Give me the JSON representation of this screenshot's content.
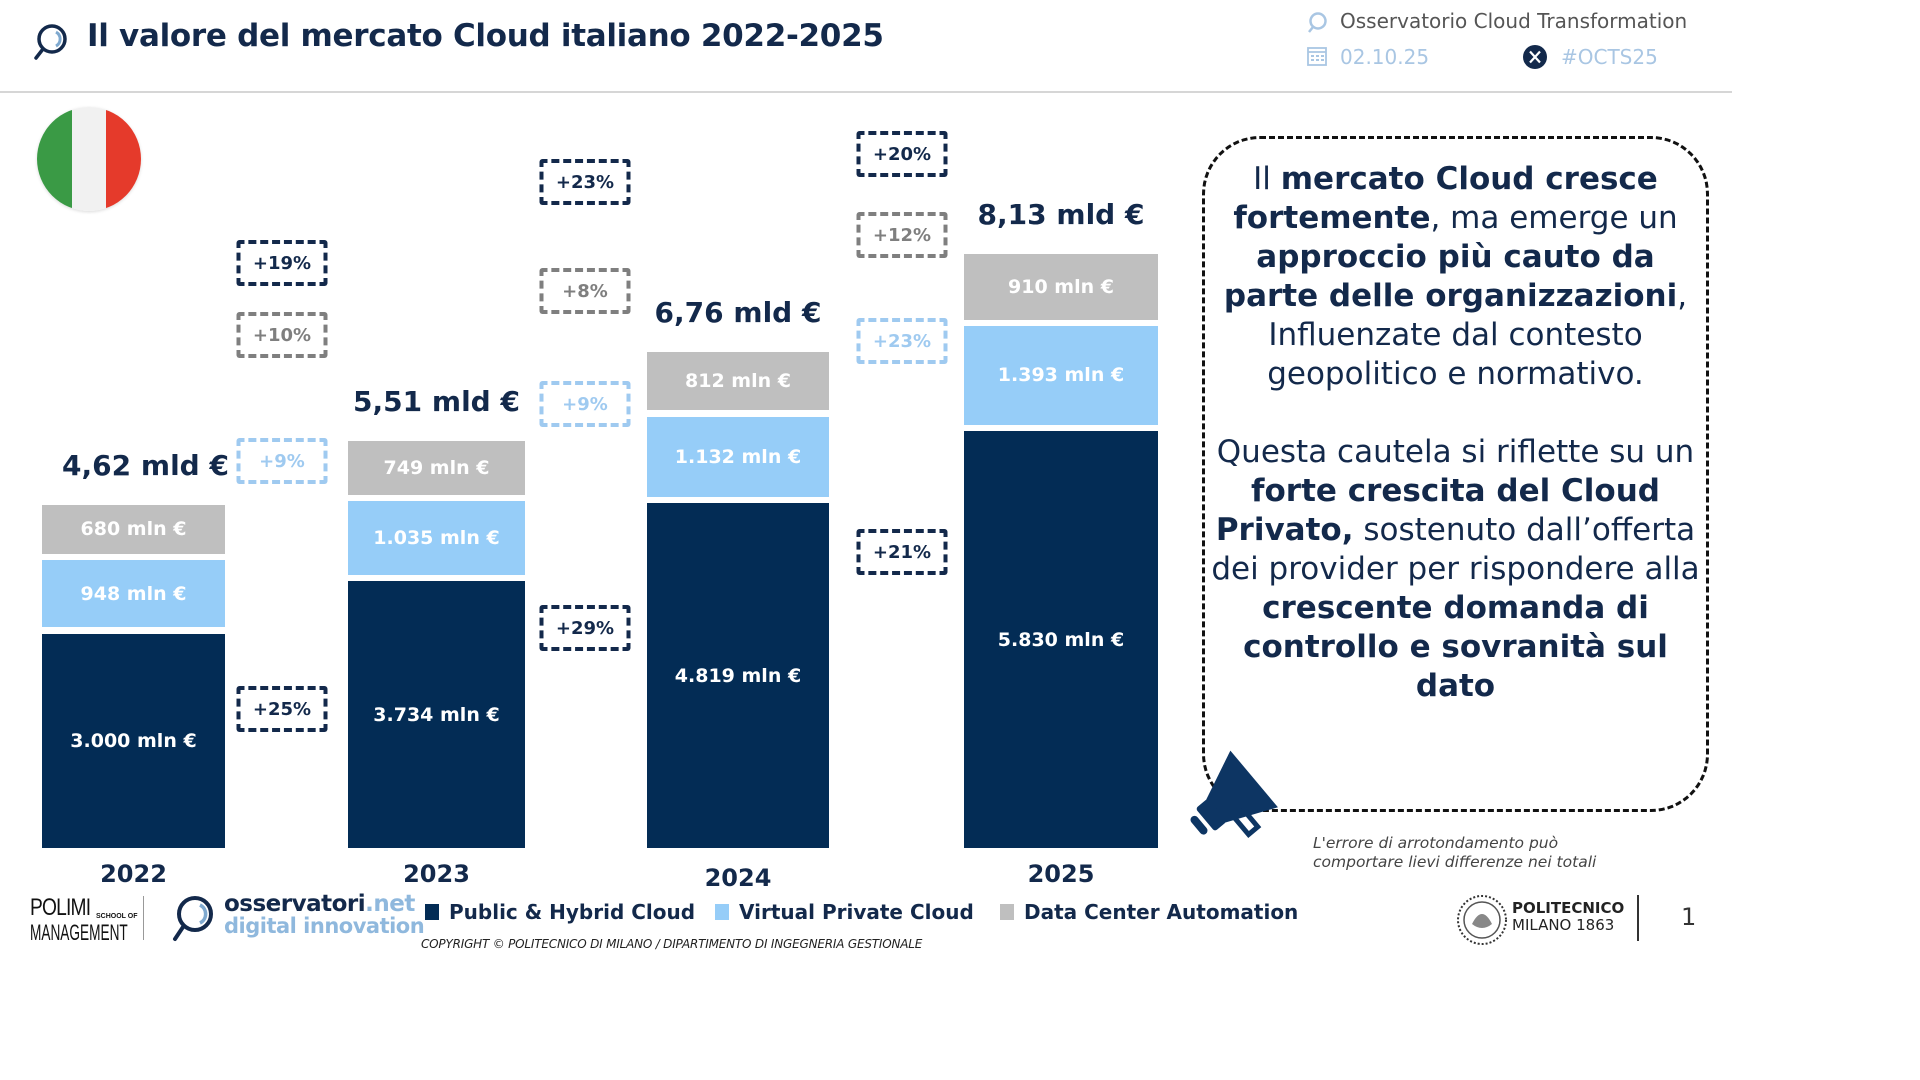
{
  "header": {
    "title": "Il valore del mercato Cloud italiano 2022-2025",
    "observatory": "Osservatorio Cloud Transformation",
    "date": "02.10.25",
    "hashtag": "#OCTS25"
  },
  "colors": {
    "public_hybrid": "#032c55",
    "virtual_private": "#96cdf8",
    "dc_automation": "#bfbfbf",
    "text_dark": "#13294b"
  },
  "chart_data": {
    "type": "bar",
    "stacked": true,
    "title": "Il valore del mercato Cloud italiano 2022-2025",
    "categories": [
      "2022",
      "2023",
      "2024",
      "2025"
    ],
    "unit": "mln €",
    "series": [
      {
        "name": "Public & Hybrid Cloud",
        "values": [
          3000,
          3734,
          4819,
          5830
        ],
        "labels": [
          "3.000 mln €",
          "3.734 mln €",
          "4.819 mln €",
          "5.830 mln €"
        ]
      },
      {
        "name": "Virtual Private Cloud",
        "values": [
          948,
          1035,
          1132,
          1393
        ],
        "labels": [
          "948 mln €",
          "1.035 mln €",
          "1.132 mln €",
          "1.393 mln €"
        ]
      },
      {
        "name": "Data Center Automation",
        "values": [
          680,
          749,
          812,
          910
        ],
        "labels": [
          "680 mln €",
          "749 mln €",
          "812 mln €",
          "910 mln €"
        ]
      }
    ],
    "totals": [
      4.62,
      5.51,
      6.76,
      8.13
    ],
    "total_labels": [
      "4,62 mld €",
      "5,51 mld €",
      "6,76 mld €",
      "8,13 mld €"
    ],
    "growth": [
      {
        "period": "2022-2023",
        "total": "+19%",
        "dc_automation": "+10%",
        "virtual_private": "+9%",
        "public_hybrid": "+25%"
      },
      {
        "period": "2023-2024",
        "total": "+23%",
        "dc_automation": "+8%",
        "virtual_private": "+9%",
        "public_hybrid": "+29%"
      },
      {
        "period": "2024-2025",
        "total": "+20%",
        "dc_automation": "+12%",
        "virtual_private": "+23%",
        "public_hybrid": "+21%"
      }
    ],
    "legend": [
      "Public & Hybrid Cloud",
      "Virtual Private Cloud",
      "Data Center Automation"
    ],
    "legend_position": "bottom",
    "grid": false,
    "xlabel": "",
    "ylabel": ""
  },
  "callout": {
    "paragraph1": [
      {
        "t": "Il ",
        "b": false
      },
      {
        "t": "mercato Cloud cresce fortemente",
        "b": true
      },
      {
        "t": ", ma emerge un ",
        "b": false
      },
      {
        "t": "approccio più cauto da parte delle organizzazioni",
        "b": true
      },
      {
        "t": ", Influenzate dal contesto geopolitico e normativo.",
        "b": false
      }
    ],
    "paragraph2": [
      {
        "t": "Questa cautela si riflette su un ",
        "b": false
      },
      {
        "t": "forte crescita del Cloud Privato,",
        "b": true
      },
      {
        "t": " sostenuto dall’offerta dei provider per rispondere alla ",
        "b": false
      },
      {
        "t": "crescente domanda di controllo e sovranità sul dato",
        "b": true
      }
    ]
  },
  "footnote": "L'errore di arrotondamento può comportare lievi differenze nei totali",
  "footer": {
    "polimi_line1": "POLIMI",
    "polimi_school": "SCHOOL OF",
    "polimi_line2": "MANAGEMENT",
    "oss_brand": "osservatori",
    "oss_tld": ".net",
    "oss_sub": "digital innovation",
    "copyright": "COPYRIGHT © POLITECNICO DI MILANO / DIPARTIMENTO DI INGEGNERIA GESTIONALE",
    "politecnico_line1": "POLITECNICO",
    "politecnico_line2": "MILANO 1863",
    "page_number": "1"
  }
}
